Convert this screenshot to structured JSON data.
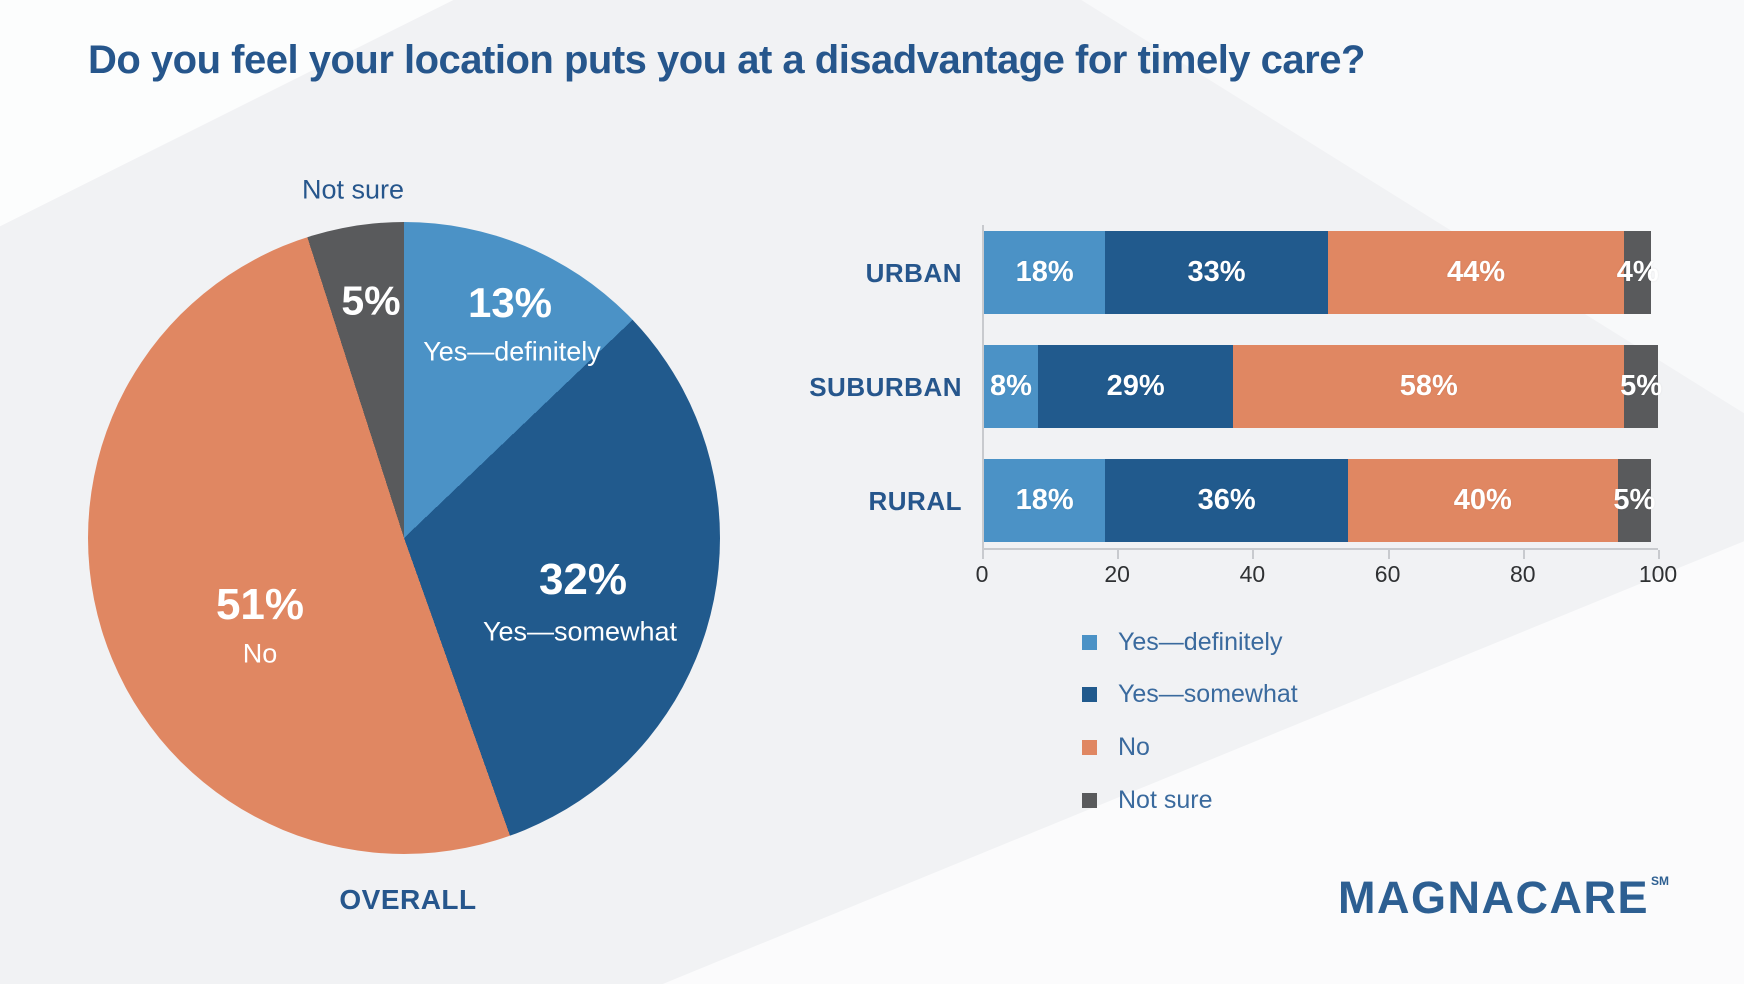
{
  "title": "Do you feel your location puts you at a disadvantage for timely care?",
  "colors": {
    "background": "#f1f2f4",
    "title_text": "#26568c",
    "legend_text": "#3a6a9e",
    "axis_line": "#c8cace",
    "axis_text": "#2f3133",
    "bar_value_text": "#ffffff",
    "logo_text": "#2d5f92"
  },
  "palette": [
    {
      "label": "Yes—definitely",
      "hex": "#4b92c6"
    },
    {
      "label": "Yes—somewhat",
      "hex": "#215a8d"
    },
    {
      "label": "No",
      "hex": "#e08762"
    },
    {
      "label": "Not sure",
      "hex": "#595a5c"
    }
  ],
  "pie": {
    "caption": "OVERALL",
    "slices": [
      {
        "name": "Yes—definitely",
        "value": 13,
        "pct_label": "13%"
      },
      {
        "name": "Yes—somewhat",
        "value": 32,
        "pct_label": "32%"
      },
      {
        "name": "No",
        "value": 51,
        "pct_label": "51%"
      },
      {
        "name": "Not sure",
        "value": 5,
        "pct_label": "5%"
      }
    ]
  },
  "bar_chart": {
    "rows": [
      {
        "label": "URBAN",
        "values": [
          18,
          33,
          44,
          4
        ]
      },
      {
        "label": "SUBURBAN",
        "values": [
          8,
          29,
          58,
          5
        ]
      },
      {
        "label": "RURAL",
        "values": [
          18,
          36,
          40,
          5
        ]
      }
    ],
    "x_ticks": [
      "0",
      "20",
      "40",
      "60",
      "80",
      "100"
    ],
    "x_max": 100
  },
  "logo": {
    "text": "MAGNACARE",
    "mark": "SM"
  },
  "chart_data": [
    {
      "type": "pie",
      "title": "OVERALL",
      "labels": [
        "Yes—definitely",
        "Yes—somewhat",
        "No",
        "Not sure"
      ],
      "values": [
        13,
        32,
        51,
        5
      ],
      "colors": [
        "#4b92c6",
        "#215a8d",
        "#e08762",
        "#595a5c"
      ],
      "start_angle": "12 o'clock, clockwise",
      "data_labels": [
        "13% Yes—definitely",
        "32% Yes—somewhat",
        "51% No",
        "5% Not sure"
      ]
    },
    {
      "type": "bar",
      "orientation": "horizontal",
      "stacked": true,
      "categories": [
        "URBAN",
        "SUBURBAN",
        "RURAL"
      ],
      "series": [
        {
          "name": "Yes—definitely",
          "values": [
            18,
            8,
            18
          ],
          "color": "#4b92c6"
        },
        {
          "name": "Yes—somewhat",
          "values": [
            33,
            29,
            36
          ],
          "color": "#215a8d"
        },
        {
          "name": "No",
          "values": [
            44,
            58,
            40
          ],
          "color": "#e08762"
        },
        {
          "name": "Not sure",
          "values": [
            4,
            5,
            5
          ],
          "color": "#595a5c"
        }
      ],
      "xlabel": "",
      "ylabel": "",
      "xlim": [
        0,
        100
      ],
      "x_ticks": [
        0,
        20,
        40,
        60,
        80,
        100
      ],
      "grid": false,
      "legend_position": "below-left",
      "data_label_format": "percent inside segment"
    }
  ]
}
